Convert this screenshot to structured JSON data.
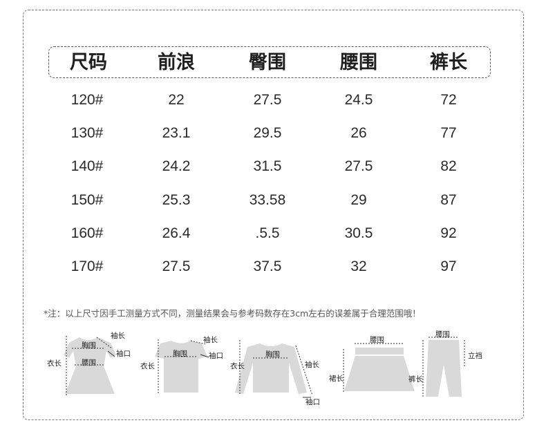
{
  "table": {
    "headers": [
      "尺码",
      "前浪",
      "臀围",
      "腰围",
      "裤长"
    ],
    "rows": [
      [
        "120#",
        "22",
        "27.5",
        "24.5",
        "72"
      ],
      [
        "130#",
        "23.1",
        "29.5",
        "26",
        "77"
      ],
      [
        "140#",
        "24.2",
        "31.5",
        "27.5",
        "82"
      ],
      [
        "150#",
        "25.3",
        "33.58",
        "29",
        "87"
      ],
      [
        "160#",
        "26.4",
        ".5.5",
        "30.5",
        "92"
      ],
      [
        "170#",
        "27.5",
        "37.5",
        "32",
        "97"
      ]
    ]
  },
  "note": "*注：以上尺寸因手工测量方式不同，测量结果会与参考码数存在3cm左右的误差属于合理范围哦！",
  "diagrams": {
    "dress": {
      "chest": "胸围",
      "waist": "腰围",
      "sleeve": "袖长",
      "cuff": "袖口",
      "length": "衣长"
    },
    "tshirt": {
      "chest": "胸围",
      "sleeve": "袖长",
      "cuff": "袖口",
      "length": "衣长"
    },
    "sweater": {
      "chest": "胸围",
      "sleeve": "袖长",
      "cuff": "袖口",
      "length": "衣长"
    },
    "skirt": {
      "waist": "腰围",
      "length": "裙长"
    },
    "pants": {
      "waist": "腰围",
      "rise": "立裆",
      "length": "裤长"
    }
  },
  "colors": {
    "garment": "#d9d9d9",
    "border": "#777777",
    "text": "#222222"
  }
}
